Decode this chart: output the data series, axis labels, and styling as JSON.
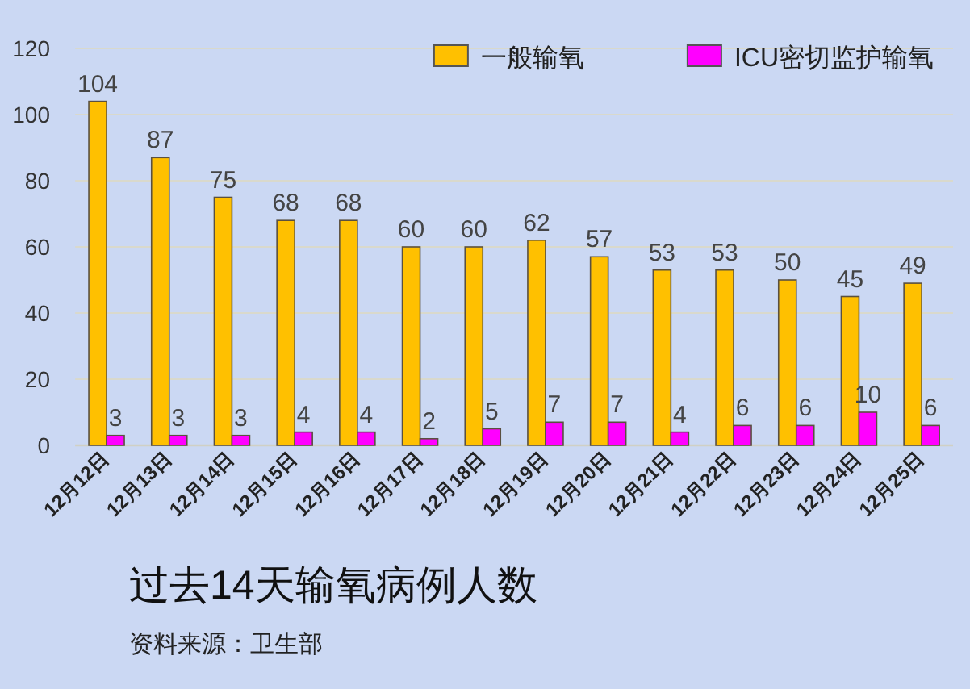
{
  "chart_data": {
    "type": "bar",
    "title": "过去14天输氧病例人数",
    "annotations": [
      "资料来源：卫生部"
    ],
    "categories": [
      "12月12日",
      "12月13日",
      "12月14日",
      "12月15日",
      "12月16日",
      "12月17日",
      "12月18日",
      "12月19日",
      "12月20日",
      "12月21日",
      "12月22日",
      "12月23日",
      "12月24日",
      "12月25日"
    ],
    "series": [
      {
        "name": "一般输氧",
        "color": "#ffc000",
        "values": [
          104,
          87,
          75,
          68,
          68,
          60,
          60,
          62,
          57,
          53,
          53,
          50,
          45,
          49
        ]
      },
      {
        "name": "ICU密切监护输氧",
        "color": "#ff00ff",
        "values": [
          3,
          3,
          3,
          4,
          4,
          2,
          5,
          7,
          7,
          4,
          6,
          6,
          10,
          6
        ]
      }
    ],
    "ylim": [
      0,
      120
    ],
    "yticks": [
      0,
      20,
      40,
      60,
      80,
      100,
      120
    ],
    "grid": "y",
    "legend": "top right",
    "data_labels": true
  }
}
